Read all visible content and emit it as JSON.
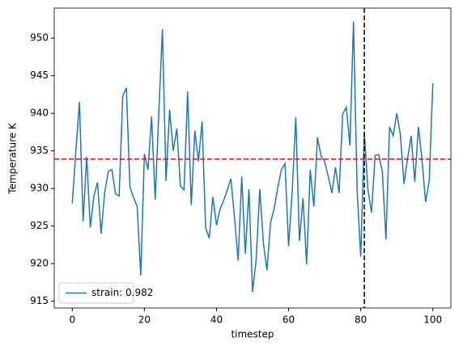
{
  "chart_data": {
    "type": "line",
    "x_label": "timestep",
    "y_label": "Temperature K",
    "x": [
      0,
      1,
      2,
      3,
      4,
      5,
      6,
      7,
      8,
      9,
      10,
      11,
      12,
      13,
      14,
      15,
      16,
      17,
      18,
      19,
      20,
      21,
      22,
      23,
      24,
      25,
      26,
      27,
      28,
      29,
      30,
      31,
      32,
      33,
      34,
      35,
      36,
      37,
      38,
      39,
      40,
      41,
      42,
      43,
      44,
      45,
      46,
      47,
      48,
      49,
      50,
      51,
      52,
      53,
      54,
      55,
      56,
      57,
      58,
      59,
      60,
      61,
      62,
      63,
      64,
      65,
      66,
      67,
      68,
      69,
      70,
      71,
      72,
      73,
      74,
      75,
      76,
      77,
      78,
      79,
      80,
      81,
      82,
      83,
      84,
      85,
      86,
      87,
      88,
      89,
      90,
      91,
      92,
      93,
      94,
      95,
      96,
      97,
      98,
      99,
      100
    ],
    "series": [
      {
        "name": "strain: 0.982",
        "color": "#1f77b4",
        "values": [
          928,
          935,
          941.5,
          925.6,
          934.2,
          924.8,
          929,
          930.8,
          924,
          929.5,
          932.3,
          932.5,
          929.3,
          929,
          942.3,
          943.4,
          930.2,
          928.8,
          927.6,
          918.4,
          934.6,
          932.5,
          939.6,
          928.5,
          940,
          951.2,
          931,
          940.5,
          935,
          938,
          930.3,
          929.8,
          942.9,
          927.8,
          937.7,
          933.6,
          938.9,
          924.7,
          923.4,
          928.9,
          925.1,
          927.3,
          928.4,
          929.8,
          931.3,
          926.1,
          920.4,
          931.6,
          921.3,
          929.9,
          916.2,
          920.5,
          929.9,
          922.8,
          919.1,
          925.5,
          927.3,
          930.1,
          932.5,
          933.3,
          922.3,
          929.6,
          939.5,
          923,
          928.7,
          919.9,
          932.5,
          927.6,
          936.8,
          934.3,
          933.6,
          931.6,
          929.4,
          932.8,
          929.4,
          939.9,
          940.8,
          935.7,
          952.2,
          929.8,
          920.9,
          937.4,
          929.9,
          926.8,
          934.4,
          934.5,
          932.2,
          923.2,
          938.2,
          937,
          940,
          937.2,
          930.6,
          934,
          937,
          930.9,
          938.2,
          933.8,
          928.2,
          931,
          944
        ]
      }
    ],
    "hline": {
      "value": 933.9,
      "color": "#ff0000"
    },
    "vline": {
      "value": 81,
      "color": "#000000"
    },
    "xlim": [
      -5,
      105
    ],
    "ylim": [
      914.1,
      954
    ],
    "xticks": [
      0,
      20,
      40,
      60,
      80,
      100
    ],
    "yticks": [
      915,
      920,
      925,
      930,
      935,
      940,
      945,
      950
    ],
    "legend": "lower left"
  }
}
